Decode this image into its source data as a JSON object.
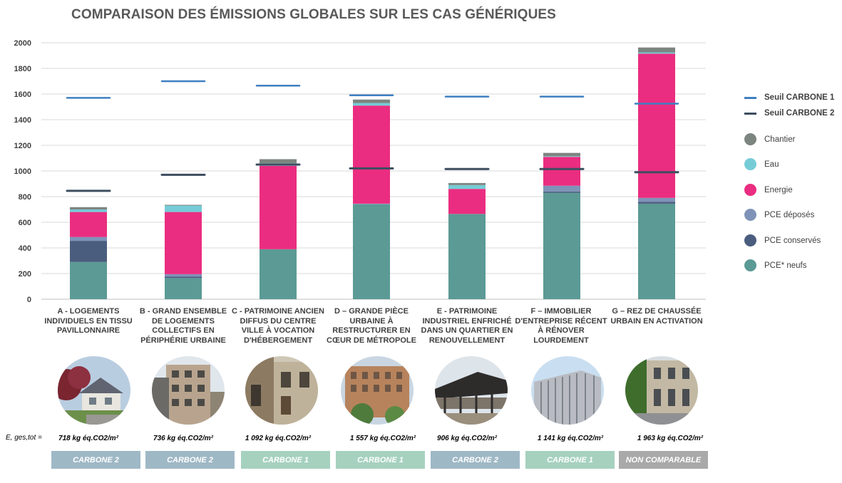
{
  "chart_data": {
    "type": "bar",
    "title": "COMPARAISON DES ÉMISSIONS GLOBALES SUR LES CAS GÉNÉRIQUES",
    "stacked": true,
    "ylim": [
      0,
      2000
    ],
    "yticks": [
      0,
      200,
      400,
      600,
      800,
      1000,
      1200,
      1400,
      1600,
      1800,
      2000
    ],
    "grid": true,
    "legend_position": "right",
    "categories": [
      "A - LOGEMENTS INDIVIDUELS EN TISSU PAVILLONNAIRE",
      "B - GRAND ENSEMBLE DE LOGEMENTS COLLECTIFS EN PÉRIPHÉRIE URBAINE",
      "C - PATRIMOINE ANCIEN DIFFUS DU CENTRE VILLE À VOCATION D'HÉBERGEMENT",
      "D – GRANDE PIÈCE URBAINE À RESTRUCTURER EN CŒUR DE MÉTROPOLE",
      "E - PATRIMOINE INDUSTRIEL ENFRICHÉ DANS UN QUARTIER EN RENOUVELLEMENT",
      "F – IMMOBILIER D'ENTREPRISE  RÉCENT À RÉNOVER LOURDEMENT",
      "G – REZ DE CHAUSSÉE URBAIN EN ACTIVATION"
    ],
    "series": [
      {
        "name": "PCE* neufs",
        "color": "#5b9a95",
        "values": [
          290,
          165,
          390,
          740,
          665,
          830,
          745
        ]
      },
      {
        "name": "PCE conservés",
        "color": "#4a5d7e",
        "values": [
          165,
          10,
          0,
          0,
          0,
          10,
          15
        ]
      },
      {
        "name": "PCE déposés",
        "color": "#7f93b8",
        "values": [
          30,
          20,
          0,
          5,
          0,
          45,
          30
        ]
      },
      {
        "name": "Energie",
        "color": "#ea2d80",
        "values": [
          195,
          485,
          650,
          765,
          195,
          225,
          1125
        ]
      },
      {
        "name": "Eau",
        "color": "#75ccd7",
        "values": [
          20,
          50,
          20,
          20,
          30,
          5,
          10
        ]
      },
      {
        "name": "Chantier",
        "color": "#7d8580",
        "values": [
          18,
          6,
          32,
          27,
          16,
          26,
          38
        ]
      }
    ],
    "thresholds": [
      {
        "name": "Seuil CARBONE 1",
        "color": "#3f7fc1",
        "values": [
          1570,
          1700,
          1665,
          1590,
          1580,
          1580,
          1525
        ]
      },
      {
        "name": "Seuil CARBONE 2",
        "color": "#3d4d5f",
        "values": [
          845,
          970,
          1050,
          1020,
          1015,
          1015,
          990
        ]
      }
    ]
  },
  "legend": {
    "seuil1": "Seuil CARBONE 1",
    "seuil2": "Seuil CARBONE 2",
    "chantier": "Chantier",
    "eau": "Eau",
    "energie": "Energie",
    "pce_deposes": "PCE déposés",
    "pce_conserves": "PCE conservés",
    "pce_neufs": "PCE* neufs"
  },
  "eq_label": "E, ges,tot  =",
  "totals": [
    "718 kg éq.CO2/m²",
    "736 kg éq.CO2/m²",
    "1 092 kg éq.CO2/m²",
    "1 557 kg éq.CO2/m²",
    "906 kg éq.CO2/m²",
    "1 141 kg éq.CO2/m²",
    "1 963 kg éq.CO2/m²"
  ],
  "badges": [
    {
      "label": "CARBONE 2",
      "color": "#9fb8c6"
    },
    {
      "label": "CARBONE 2",
      "color": "#9fb8c6"
    },
    {
      "label": "CARBONE 1",
      "color": "#a6d1bf"
    },
    {
      "label": "CARBONE 1",
      "color": "#a6d1bf"
    },
    {
      "label": "CARBONE 2",
      "color": "#9fb8c6"
    },
    {
      "label": "CARBONE 1",
      "color": "#a6d1bf"
    },
    {
      "label": "NON COMPARABLE",
      "color": "#a9a9a9"
    }
  ]
}
